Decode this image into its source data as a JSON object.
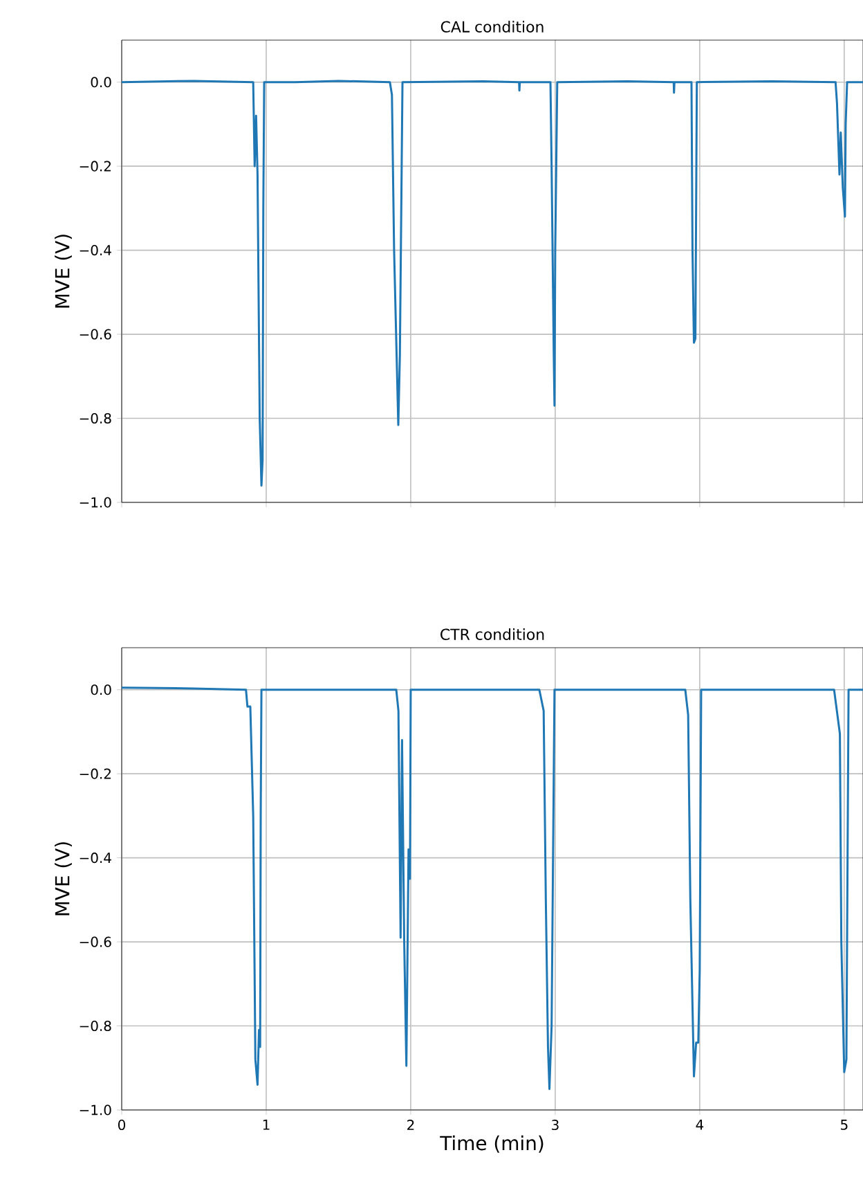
{
  "chart_data": [
    {
      "type": "line",
      "title": "CAL condition",
      "ylabel": "MVE (V)",
      "color": "#1f77b4",
      "grid": true,
      "tick_labels": "y",
      "xlim": [
        0,
        5.13
      ],
      "ylim": [
        -1.0,
        0.1
      ],
      "xticks": [
        0,
        1,
        2,
        3,
        4,
        5
      ],
      "yticks": [
        {
          "value": -1.0,
          "label": "−1.0"
        },
        {
          "value": -0.8,
          "label": "−0.8"
        },
        {
          "value": -0.6,
          "label": "−0.6"
        },
        {
          "value": -0.4,
          "label": "−0.4"
        },
        {
          "value": -0.2,
          "label": "−0.2"
        },
        {
          "value": 0.0,
          "label": "0.0"
        }
      ],
      "x": [
        0,
        0.5,
        0.91,
        0.915,
        0.92,
        0.93,
        0.94,
        0.955,
        0.967,
        0.975,
        0.98,
        0.986,
        1.2,
        1.5,
        1.856,
        1.87,
        1.885,
        1.914,
        1.925,
        1.943,
        2.5,
        2.75,
        2.752,
        2.755,
        2.967,
        2.975,
        2.99,
        2.995,
        3.0,
        3.014,
        3.5,
        3.82,
        3.822,
        3.825,
        3.943,
        3.95,
        3.96,
        3.97,
        3.98,
        4.5,
        4.94,
        4.95,
        4.967,
        4.976,
        4.99,
        5.005,
        5.01,
        5.02,
        5.13
      ],
      "values": [
        0,
        0.003,
        0,
        -0.1,
        -0.2,
        -0.08,
        -0.22,
        -0.8,
        -0.96,
        -0.9,
        -0.3,
        0,
        0,
        0.003,
        0,
        -0.03,
        -0.4,
        -0.816,
        -0.65,
        0,
        0.002,
        0,
        -0.02,
        0,
        0,
        -0.2,
        -0.65,
        -0.77,
        -0.4,
        0,
        0.002,
        0,
        -0.025,
        0,
        0,
        -0.4,
        -0.62,
        -0.61,
        0,
        0.002,
        0,
        -0.05,
        -0.22,
        -0.12,
        -0.25,
        -0.32,
        -0.1,
        0,
        0
      ]
    },
    {
      "type": "line",
      "title": "CTR condition",
      "xlabel": "Time (min)",
      "ylabel": "MVE (V)",
      "color": "#1f77b4",
      "grid": true,
      "xlim": [
        0,
        5.13
      ],
      "ylim": [
        -1.0,
        0.1
      ],
      "xticks": [
        0,
        1,
        2,
        3,
        4,
        5
      ],
      "yticks": [
        {
          "value": -1.0,
          "label": "−1.0"
        },
        {
          "value": -0.8,
          "label": "−0.8"
        },
        {
          "value": -0.6,
          "label": "−0.6"
        },
        {
          "value": -0.4,
          "label": "−0.4"
        },
        {
          "value": -0.2,
          "label": "−0.2"
        },
        {
          "value": 0.0,
          "label": "0.0"
        }
      ],
      "x": [
        0,
        0.5,
        0.86,
        0.87,
        0.89,
        0.91,
        0.925,
        0.94,
        0.95,
        0.958,
        0.962,
        0.967,
        1.5,
        1.9,
        1.915,
        1.93,
        1.94,
        1.955,
        1.97,
        1.985,
        1.995,
        2.0,
        2.5,
        2.89,
        2.92,
        2.935,
        2.95,
        2.96,
        2.975,
        2.995,
        3.5,
        3.9,
        3.92,
        3.935,
        3.96,
        3.975,
        3.99,
        4.0,
        4.01,
        4.5,
        4.93,
        4.97,
        4.98,
        5.0,
        5.015,
        5.03,
        5.13
      ],
      "values": [
        0.005,
        0.003,
        0,
        -0.04,
        -0.04,
        -0.3,
        -0.88,
        -0.94,
        -0.81,
        -0.85,
        -0.3,
        0,
        0,
        0,
        -0.05,
        -0.59,
        -0.12,
        -0.6,
        -0.895,
        -0.38,
        -0.45,
        0,
        0,
        0,
        -0.05,
        -0.5,
        -0.85,
        -0.95,
        -0.8,
        0,
        0,
        0,
        -0.06,
        -0.5,
        -0.92,
        -0.84,
        -0.84,
        -0.67,
        0,
        0,
        0,
        -0.105,
        -0.6,
        -0.91,
        -0.88,
        0,
        0
      ]
    }
  ]
}
